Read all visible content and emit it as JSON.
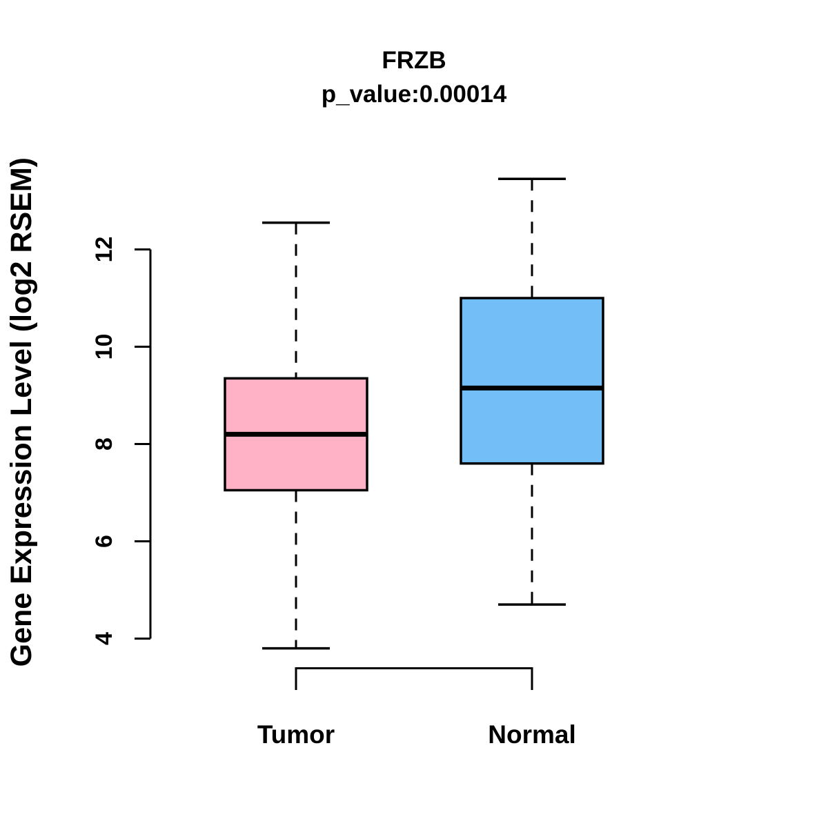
{
  "chart_data": {
    "type": "boxplot",
    "title": "FRZB",
    "subtitle": "p_value:0.00014",
    "ylabel": "Gene Expression Level (log2 RSEM)",
    "yticks": [
      4,
      6,
      8,
      10,
      12
    ],
    "ylim": [
      3.5,
      13.7
    ],
    "grid": false,
    "categories": [
      "Tumor",
      "Normal"
    ],
    "groups": [
      {
        "label": "Tumor",
        "color": "#FFB1C5",
        "whisker_low": 3.8,
        "q1": 7.05,
        "median": 8.2,
        "q3": 9.35,
        "whisker_high": 12.55
      },
      {
        "label": "Normal",
        "color": "#74BEF8",
        "whisker_low": 4.7,
        "q1": 7.6,
        "median": 9.15,
        "q3": 11.0,
        "whisker_high": 13.45
      }
    ],
    "comparison_bracket": {
      "groups": [
        "Tumor",
        "Normal"
      ]
    }
  },
  "colors": {
    "stroke": "#000000",
    "background": "#FFFFFF"
  }
}
